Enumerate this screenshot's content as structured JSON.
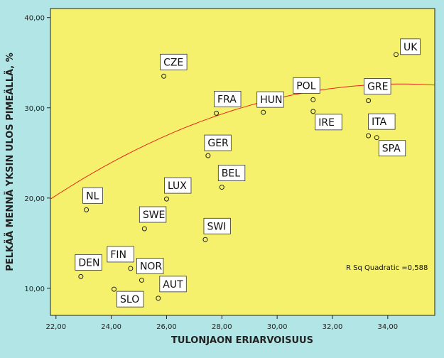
{
  "colors": {
    "background": "#b2e5e6",
    "plot_fill": "#f5f16c",
    "fit_line": "#e8261b",
    "label_box": "#ffffff"
  },
  "chart_data": {
    "type": "scatter",
    "xlabel": "TULONJAON ERIARVOISUUS",
    "ylabel": "PELKÄÄ MENNÄ YKSIN ULOS PIMEÄLLÄ, %",
    "xlim": [
      21.8,
      35.7
    ],
    "ylim": [
      7.0,
      41.0
    ],
    "x_ticks": [
      22,
      24,
      26,
      28,
      30,
      32,
      34
    ],
    "x_tick_labels": [
      "22,00",
      "24,00",
      "26,00",
      "28,00",
      "30,00",
      "32,00",
      "34,00"
    ],
    "y_ticks": [
      10,
      20,
      30,
      40
    ],
    "y_tick_labels": [
      "10,00",
      "20,00",
      "30,00",
      "40,00"
    ],
    "points": [
      {
        "label": "UK",
        "x": 34.3,
        "y": 35.9
      },
      {
        "label": "CZE",
        "x": 25.9,
        "y": 33.5
      },
      {
        "label": "POL",
        "x": 31.3,
        "y": 30.9
      },
      {
        "label": "GRE",
        "x": 33.3,
        "y": 30.8
      },
      {
        "label": "IRE",
        "x": 31.3,
        "y": 29.6
      },
      {
        "label": "HUN",
        "x": 29.5,
        "y": 29.5
      },
      {
        "label": "FRA",
        "x": 27.8,
        "y": 29.4
      },
      {
        "label": "ITA",
        "x": 33.3,
        "y": 26.9
      },
      {
        "label": "SPA",
        "x": 33.6,
        "y": 26.7
      },
      {
        "label": "GER",
        "x": 27.5,
        "y": 24.7
      },
      {
        "label": "BEL",
        "x": 28.0,
        "y": 21.2
      },
      {
        "label": "LUX",
        "x": 26.0,
        "y": 19.9
      },
      {
        "label": "NL",
        "x": 23.1,
        "y": 18.7
      },
      {
        "label": "SWE",
        "x": 25.2,
        "y": 16.6
      },
      {
        "label": "SWI",
        "x": 27.4,
        "y": 15.4
      },
      {
        "label": "FIN",
        "x": 24.7,
        "y": 12.2
      },
      {
        "label": "DEN",
        "x": 22.9,
        "y": 11.3
      },
      {
        "label": "NOR",
        "x": 25.1,
        "y": 10.9
      },
      {
        "label": "SLO",
        "x": 24.1,
        "y": 9.9
      },
      {
        "label": "AUT",
        "x": 25.7,
        "y": 8.9
      }
    ],
    "fit": {
      "type": "quadratic",
      "coefficients": {
        "a": -0.0795,
        "b": 5.48,
        "c": -61.8
      },
      "x_range": [
        21.8,
        35.7
      ]
    },
    "annotation": "R Sq Quadratic =0,588",
    "grid": false,
    "legend": "none"
  }
}
